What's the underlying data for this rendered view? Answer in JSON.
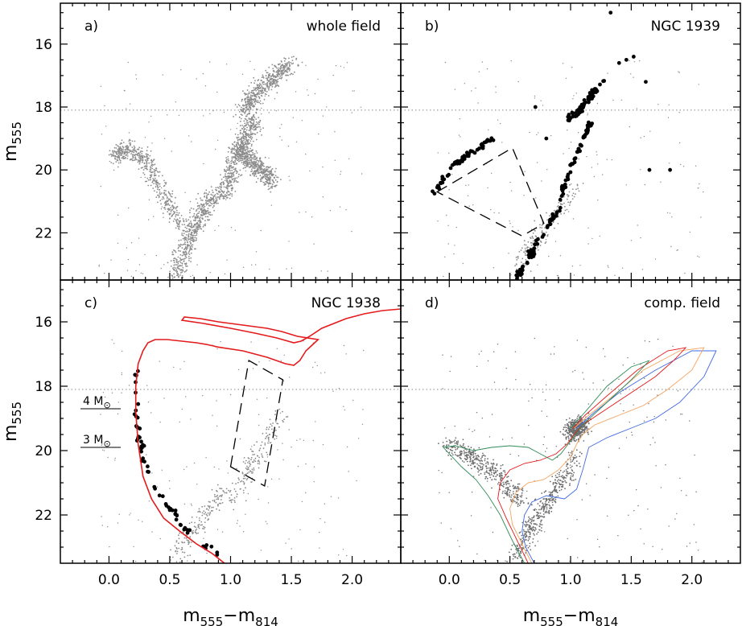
{
  "chart_data": [
    {
      "id": "a",
      "type": "scatter",
      "panel_label": "a)",
      "title": "whole field",
      "xlabel": "",
      "ylabel": {
        "main": "m",
        "sub": "555"
      },
      "xlim": [
        -0.4,
        2.4
      ],
      "ylim": [
        23.5,
        14.7
      ],
      "x_ticks": [
        "0.0",
        "0.5",
        "1.0",
        "1.5",
        "2.0"
      ],
      "y_ticks": [
        "16",
        "18",
        "20",
        "22"
      ],
      "reference_line_y": 18.1,
      "series": [
        {
          "role": "field-stars",
          "color": "#8c8c8c",
          "sequences": [
            {
              "x": [
                0.55,
                0.6,
                0.65,
                0.7,
                0.75,
                0.8,
                0.88
              ],
              "y": [
                23.4,
                22.8,
                22.3,
                21.9,
                21.5,
                21.1,
                20.7
              ]
            },
            {
              "x": [
                0.05,
                0.15,
                0.3,
                0.45,
                0.6
              ],
              "y": [
                19.6,
                19.3,
                19.7,
                20.8,
                21.8
              ]
            },
            {
              "x": [
                0.95,
                1.0,
                1.05,
                1.1,
                1.15,
                1.2
              ],
              "y": [
                20.8,
                20.2,
                19.6,
                19.2,
                18.8,
                18.4
              ]
            },
            {
              "x": [
                1.05,
                1.15,
                1.25,
                1.35
              ],
              "y": [
                19.3,
                19.6,
                20.0,
                20.4
              ]
            },
            {
              "x": [
                1.1,
                1.2,
                1.35,
                1.5
              ],
              "y": [
                18.2,
                17.6,
                17.1,
                16.6
              ]
            }
          ]
        }
      ]
    },
    {
      "id": "b",
      "type": "scatter",
      "panel_label": "b)",
      "title": "NGC 1939",
      "xlabel": "",
      "ylabel": "",
      "xlim": [
        -0.4,
        2.4
      ],
      "ylim": [
        23.5,
        14.7
      ],
      "x_ticks": [
        "0.0",
        "0.5",
        "1.0",
        "1.5",
        "2.0"
      ],
      "y_ticks": [
        "16",
        "18",
        "20",
        "22"
      ],
      "reference_line_y": 18.1,
      "series": [
        {
          "role": "background-field",
          "color": "#8c8c8c",
          "sequences": [
            {
              "x": [
                0.55,
                0.65,
                0.75,
                0.85,
                0.95,
                1.05
              ],
              "y": [
                23.3,
                22.6,
                22.0,
                21.5,
                21.0,
                20.5
              ]
            }
          ]
        },
        {
          "role": "members",
          "color": "#000000",
          "sequences": [
            {
              "x": [
                0.56,
                0.62,
                0.68,
                0.75,
                0.82,
                0.88
              ],
              "y": [
                23.4,
                23.0,
                22.6,
                22.2,
                21.8,
                21.4
              ]
            },
            {
              "x": [
                0.88,
                0.93,
                0.98,
                1.03,
                1.08,
                1.12,
                1.15,
                1.17
              ],
              "y": [
                21.4,
                20.8,
                20.2,
                19.7,
                19.2,
                18.9,
                18.7,
                18.5
              ]
            },
            {
              "x": [
                -0.12,
                -0.05,
                0.05,
                0.15,
                0.25,
                0.35
              ],
              "y": [
                20.7,
                20.3,
                19.8,
                19.5,
                19.3,
                19.0
              ]
            },
            {
              "x": [
                0.97,
                1.05,
                1.12,
                1.2,
                1.3
              ],
              "y": [
                18.4,
                18.2,
                17.9,
                17.5,
                17.1
              ]
            }
          ]
        },
        {
          "role": "giants",
          "color": "#000000",
          "x": [
            1.33,
            1.4,
            1.46,
            1.52,
            1.62,
            1.65,
            1.82,
            0.71,
            0.8
          ],
          "y": [
            15.0,
            16.6,
            16.5,
            16.4,
            17.2,
            20.0,
            20.0,
            18.0,
            19.0
          ]
        }
      ],
      "annotation": {
        "shape": "dashed-polygon",
        "x": [
          -0.1,
          0.52,
          0.78,
          0.6
        ],
        "y": [
          20.7,
          19.3,
          21.7,
          22.1
        ]
      }
    },
    {
      "id": "c",
      "type": "scatter",
      "panel_label": "c)",
      "title": "NGC 1938",
      "xlabel": {
        "main": "m",
        "sub1": "555",
        "sep": "−m",
        "sub2": "814"
      },
      "ylabel": {
        "main": "m",
        "sub": "555"
      },
      "xlim": [
        -0.4,
        2.4
      ],
      "ylim": [
        23.5,
        14.7
      ],
      "x_ticks": [
        "0.0",
        "0.5",
        "1.0",
        "1.5",
        "2.0"
      ],
      "y_ticks": [
        "16",
        "18",
        "20",
        "22"
      ],
      "reference_line_y": 18.1,
      "mass_markers": [
        {
          "label": "4 M",
          "symbol": "⊙",
          "y": 18.7
        },
        {
          "label": "3 M",
          "symbol": "⊙",
          "y": 19.9
        }
      ],
      "series": [
        {
          "role": "field",
          "color": "#8c8c8c",
          "sequences": [
            {
              "x": [
                0.55,
                0.65,
                0.75,
                0.85,
                0.95
              ],
              "y": [
                23.3,
                22.7,
                22.2,
                21.7,
                21.2
              ]
            },
            {
              "x": [
                1.0,
                1.1,
                1.2,
                1.3,
                1.4
              ],
              "y": [
                21.5,
                20.9,
                20.3,
                19.6,
                18.9
              ]
            }
          ]
        },
        {
          "role": "members",
          "color": "#000000",
          "sequences": [
            {
              "x": [
                0.22,
                0.21,
                0.22,
                0.25,
                0.3,
                0.38,
                0.5,
                0.6,
                0.7,
                0.8,
                0.9
              ],
              "y": [
                17.5,
                18.3,
                19.0,
                19.7,
                20.4,
                21.1,
                21.8,
                22.3,
                22.7,
                23.0,
                23.3
              ]
            }
          ]
        }
      ],
      "isochrones": [
        {
          "color": "#e41a1c",
          "x": [
            0.95,
            0.85,
            0.72,
            0.58,
            0.45,
            0.35,
            0.28,
            0.24,
            0.22,
            0.22,
            0.24,
            0.28,
            0.32,
            0.38,
            0.48,
            0.6,
            0.72,
            0.8,
            0.86,
            0.89
          ],
          "y": [
            23.5,
            23.2,
            22.9,
            22.5,
            22.1,
            21.5,
            20.8,
            19.8,
            18.8,
            18.0,
            17.3,
            16.9,
            16.65,
            16.55,
            16.55,
            16.6,
            16.65,
            16.7,
            16.75,
            16.78
          ]
        },
        {
          "color": "#e41a1c",
          "x": [
            0.89,
            1.1,
            1.3,
            1.45,
            1.52,
            1.57,
            1.62,
            1.72,
            1.55,
            1.42,
            1.3,
            1.1,
            0.9,
            0.75,
            0.62,
            0.6,
            0.78,
            1.0,
            1.2,
            1.38,
            1.52,
            1.58,
            1.65,
            1.75,
            1.95,
            2.1,
            2.25,
            2.4
          ],
          "y": [
            16.78,
            16.9,
            17.1,
            17.3,
            17.35,
            17.2,
            16.9,
            16.55,
            16.45,
            16.3,
            16.2,
            16.1,
            16.0,
            15.9,
            15.85,
            15.95,
            16.05,
            16.2,
            16.35,
            16.5,
            16.65,
            16.6,
            16.45,
            16.2,
            15.9,
            15.75,
            15.65,
            15.6
          ]
        }
      ],
      "annotation": {
        "shape": "dashed-polygon",
        "x": [
          1.0,
          1.15,
          1.43,
          1.28
        ],
        "y": [
          20.5,
          17.2,
          17.8,
          21.1
        ]
      }
    },
    {
      "id": "d",
      "type": "scatter",
      "panel_label": "d)",
      "title": "comp. field",
      "xlabel": {
        "main": "m",
        "sub1": "555",
        "sep": "−m",
        "sub2": "814"
      },
      "ylabel": "",
      "xlim": [
        -0.4,
        2.4
      ],
      "ylim": [
        23.5,
        14.7
      ],
      "x_ticks": [
        "0.0",
        "0.5",
        "1.0",
        "1.5",
        "2.0"
      ],
      "y_ticks": [
        "16",
        "18",
        "20",
        "22"
      ],
      "reference_line_y": 18.1,
      "series": [
        {
          "role": "field",
          "color": "#6e6e6e",
          "sequences": [
            {
              "x": [
                0.55,
                0.65,
                0.75,
                0.85,
                0.95,
                1.05
              ],
              "y": [
                23.3,
                22.6,
                22.0,
                21.4,
                20.8,
                20.2
              ]
            },
            {
              "x": [
                0.0,
                0.2,
                0.4,
                0.6
              ],
              "y": [
                19.8,
                20.2,
                20.8,
                21.6
              ]
            },
            {
              "x": [
                1.0,
                1.05,
                1.1
              ],
              "y": [
                19.5,
                19.3,
                19.2
              ]
            }
          ]
        }
      ],
      "isochrones": [
        {
          "color": "#4169e1",
          "x": [
            0.7,
            0.63,
            0.6,
            0.62,
            0.68,
            0.8,
            0.95,
            1.05,
            1.1,
            1.15,
            1.3,
            1.5,
            1.7,
            1.9,
            2.1,
            2.2,
            2.0,
            1.7,
            1.4,
            1.2,
            1.05
          ],
          "y": [
            23.5,
            23.0,
            22.5,
            22.0,
            21.6,
            21.4,
            21.5,
            21.2,
            20.6,
            19.9,
            19.6,
            19.3,
            19.0,
            18.5,
            17.7,
            16.9,
            16.9,
            17.5,
            18.2,
            18.8,
            19.3
          ]
        },
        {
          "color": "#f4a460",
          "x": [
            0.68,
            0.6,
            0.52,
            0.5,
            0.55,
            0.65,
            0.78,
            0.9,
            1.0,
            1.05,
            1.1,
            1.2,
            1.4,
            1.6,
            1.8,
            2.0,
            2.1,
            1.9,
            1.6,
            1.35,
            1.15,
            1.03
          ],
          "y": [
            23.5,
            22.9,
            22.3,
            21.8,
            21.3,
            21.0,
            20.9,
            20.6,
            20.2,
            19.8,
            19.5,
            19.2,
            18.9,
            18.6,
            18.1,
            17.5,
            16.8,
            16.9,
            17.5,
            18.3,
            18.9,
            19.3
          ]
        },
        {
          "color": "#e41a1c",
          "x": [
            0.65,
            0.56,
            0.47,
            0.4,
            0.42,
            0.5,
            0.62,
            0.75,
            0.88,
            0.97,
            1.03,
            1.1,
            1.3,
            1.5,
            1.7,
            1.85,
            1.95,
            1.8,
            1.55,
            1.3,
            1.12,
            1.02
          ],
          "y": [
            23.5,
            22.8,
            22.1,
            21.5,
            21.0,
            20.6,
            20.4,
            20.3,
            20.1,
            19.8,
            19.5,
            19.2,
            18.7,
            18.2,
            17.7,
            17.2,
            16.8,
            16.9,
            17.5,
            18.3,
            18.9,
            19.3
          ]
        },
        {
          "color": "#2e8b57",
          "x": [
            0.62,
            0.52,
            0.42,
            0.32,
            0.22,
            0.1,
            -0.05,
            0.05,
            0.2,
            0.35,
            0.5,
            0.65,
            0.75,
            0.85,
            0.92,
            1.0,
            1.1,
            1.3,
            1.5,
            1.65,
            1.5,
            1.3,
            1.12,
            1.0
          ],
          "y": [
            23.5,
            22.8,
            22.0,
            21.4,
            20.9,
            20.5,
            19.9,
            19.85,
            20.0,
            19.9,
            19.85,
            19.9,
            20.1,
            20.3,
            20.1,
            19.7,
            19.2,
            18.5,
            17.8,
            17.2,
            17.4,
            18.0,
            18.8,
            19.3
          ]
        }
      ]
    }
  ]
}
